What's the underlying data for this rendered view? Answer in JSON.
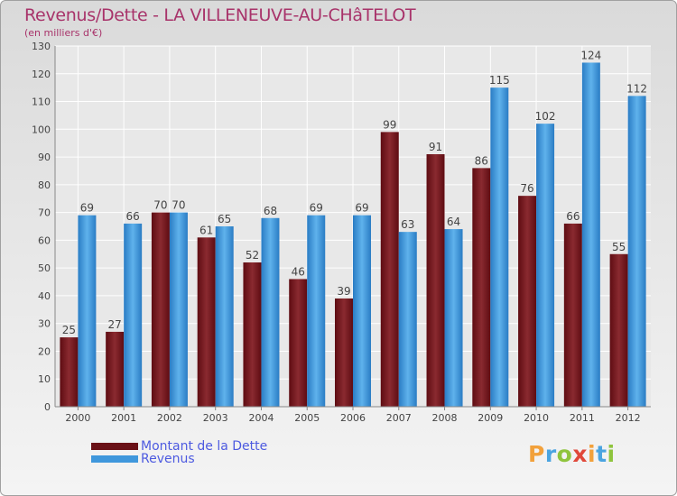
{
  "title": "Revenus/Dette - LA VILLENEUVE-AU-CHâTELOT",
  "subtitle": "(en milliers d'€)",
  "logo": {
    "letters": [
      "P",
      "r",
      "o",
      "x",
      "i",
      "t",
      "i"
    ],
    "colors": [
      "#f2a13b",
      "#4aa4e0",
      "#8fc43d",
      "#e0483a",
      "#f2a13b",
      "#4aa4e0",
      "#8fc43d"
    ]
  },
  "chart_data": {
    "type": "bar",
    "categories": [
      "2000",
      "2001",
      "2002",
      "2003",
      "2004",
      "2005",
      "2006",
      "2007",
      "2008",
      "2009",
      "2010",
      "2011",
      "2012"
    ],
    "series": [
      {
        "name": "Montant de la Dette",
        "values": [
          25,
          27,
          70,
          61,
          52,
          46,
          39,
          99,
          91,
          86,
          76,
          66,
          55
        ],
        "color": "#7a1f26"
      },
      {
        "name": "Revenus",
        "values": [
          69,
          66,
          70,
          65,
          68,
          69,
          69,
          63,
          64,
          115,
          102,
          124,
          112
        ],
        "color": "#4a9fe0"
      }
    ],
    "ylim": [
      0,
      130
    ],
    "yticks": [
      0,
      10,
      20,
      30,
      40,
      50,
      60,
      70,
      80,
      90,
      100,
      110,
      120,
      130
    ],
    "grid": true,
    "legend": "bottom-left"
  }
}
